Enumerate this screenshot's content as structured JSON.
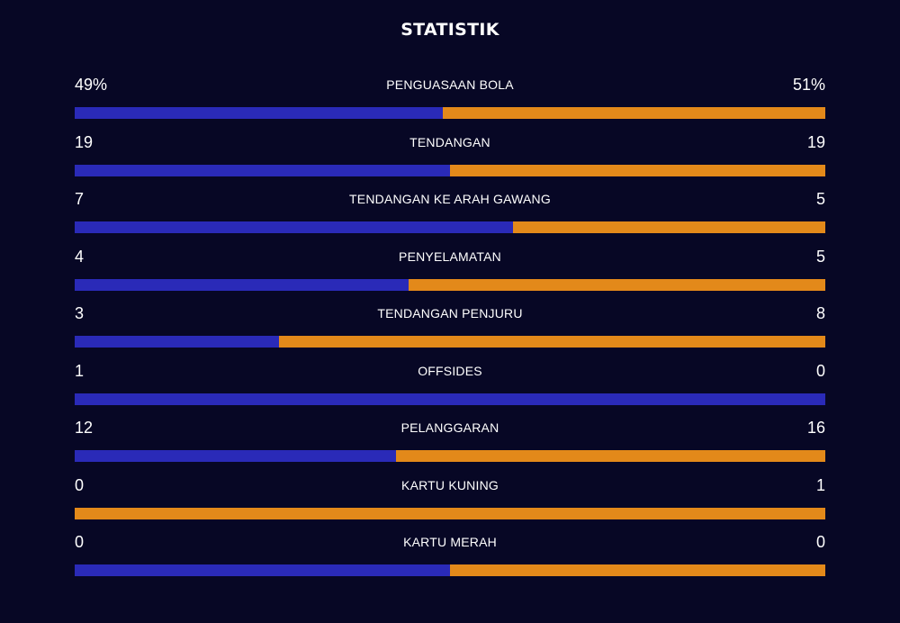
{
  "title": "STATISTIK",
  "colors": {
    "background": "#070725",
    "home": "#2a2ab8",
    "away": "#e3891a"
  },
  "stats": [
    {
      "label": "PENGUASAAN BOLA",
      "left": "49%",
      "right": "51%",
      "left_num": 49,
      "right_num": 51
    },
    {
      "label": "TENDANGAN",
      "left": "19",
      "right": "19",
      "left_num": 19,
      "right_num": 19
    },
    {
      "label": "TENDANGAN KE ARAH GAWANG",
      "left": "7",
      "right": "5",
      "left_num": 7,
      "right_num": 5
    },
    {
      "label": "PENYELAMATAN",
      "left": "4",
      "right": "5",
      "left_num": 4,
      "right_num": 5
    },
    {
      "label": "TENDANGAN PENJURU",
      "left": "3",
      "right": "8",
      "left_num": 3,
      "right_num": 8
    },
    {
      "label": "OFFSIDES",
      "left": "1",
      "right": "0",
      "left_num": 1,
      "right_num": 0
    },
    {
      "label": "PELANGGARAN",
      "left": "12",
      "right": "16",
      "left_num": 12,
      "right_num": 16
    },
    {
      "label": "KARTU KUNING",
      "left": "0",
      "right": "1",
      "left_num": 0,
      "right_num": 1
    },
    {
      "label": "KARTU MERAH",
      "left": "0",
      "right": "0",
      "left_num": 0,
      "right_num": 0
    }
  ]
}
